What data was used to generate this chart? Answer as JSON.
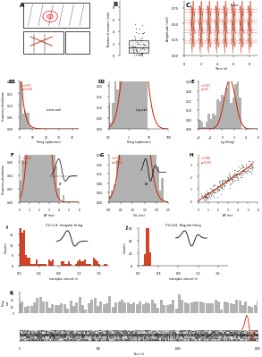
{
  "bg_color": "#ffffff",
  "red_color": "#cc2200",
  "gray_color": "#888888",
  "bar_color": "#aaaaaa",
  "dark_color": "#222222"
}
